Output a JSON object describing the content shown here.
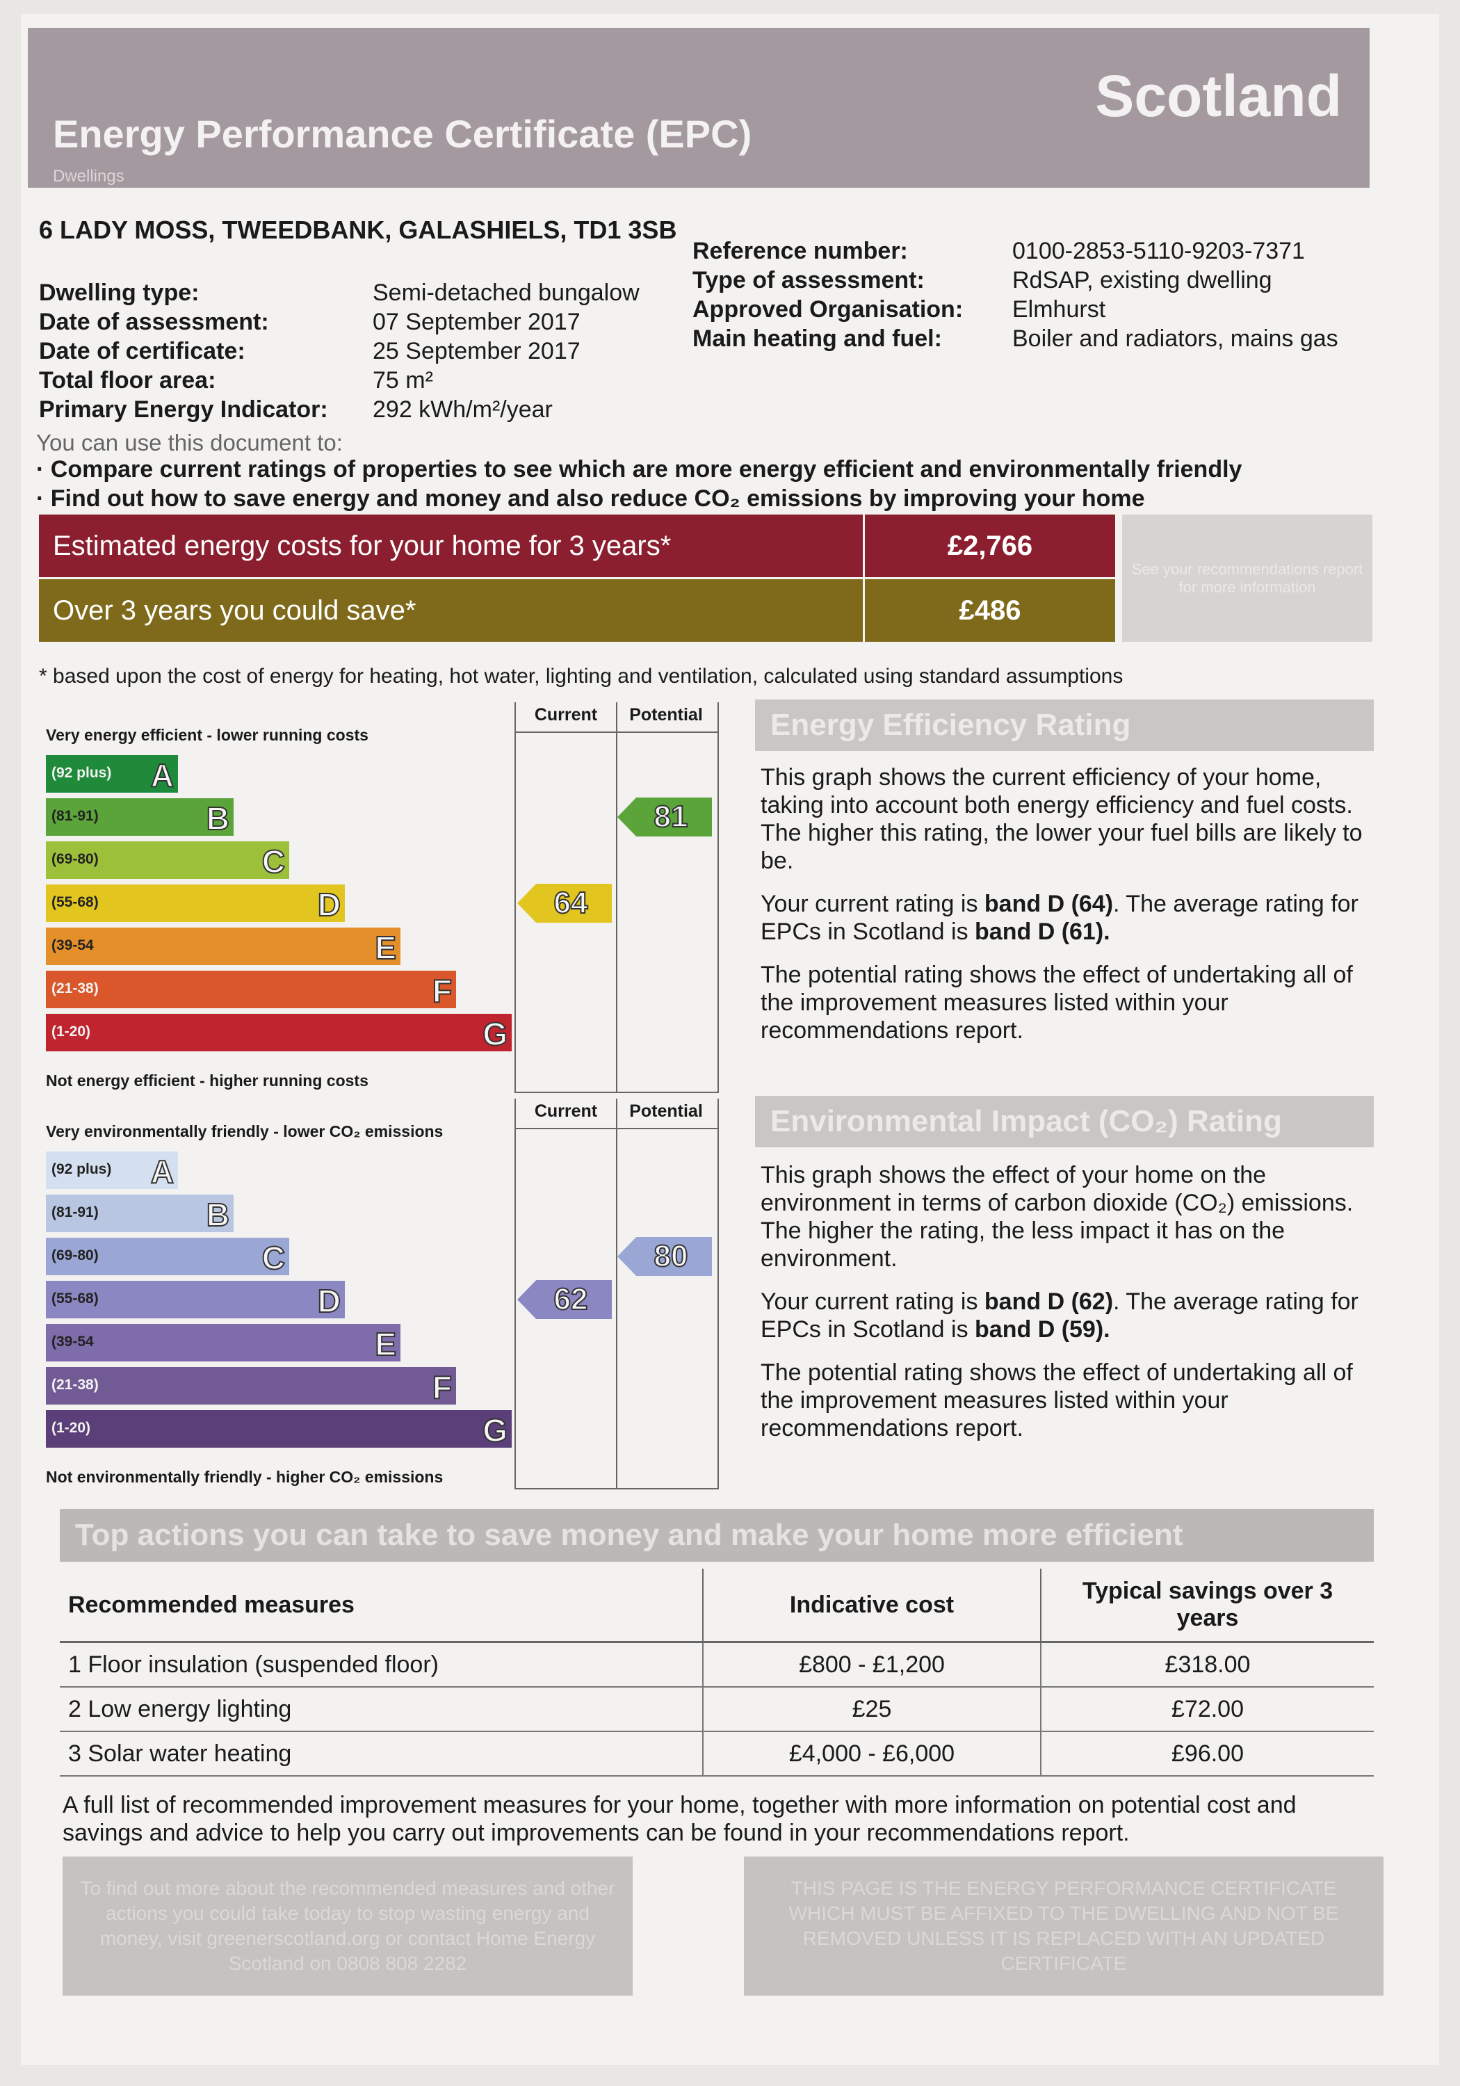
{
  "header": {
    "title": "Energy Performance Certificate (EPC)",
    "country": "Scotland",
    "sub": "Dwellings"
  },
  "address": "6 LADY MOSS, TWEEDBANK, GALASHIELS, TD1 3SB",
  "details_left": [
    {
      "label": "Dwelling type:",
      "value": "Semi-detached bungalow"
    },
    {
      "label": "Date of assessment:",
      "value": "07 September 2017"
    },
    {
      "label": "Date of certificate:",
      "value": "25 September 2017"
    },
    {
      "label": "Total floor area:",
      "value": "75 m²"
    },
    {
      "label": "Primary Energy Indicator:",
      "value": "292 kWh/m²/year"
    }
  ],
  "details_right": [
    {
      "label": "Reference number:",
      "value": "0100-2853-5110-9203-7371"
    },
    {
      "label": "Type of assessment:",
      "value": "RdSAP, existing dwelling"
    },
    {
      "label": "Approved Organisation:",
      "value": "Elmhurst"
    },
    {
      "label": "Main heating and fuel:",
      "value": "Boiler and radiators, mains gas"
    }
  ],
  "uses": {
    "intro": "You can use this document to:",
    "items": [
      "Compare current ratings of properties to see which are more energy efficient and environmentally friendly",
      "Find out how to save energy and money and also reduce CO₂ emissions by improving your home"
    ]
  },
  "costs": {
    "estimated_label": "Estimated energy costs for your home for 3 years*",
    "estimated_value": "£2,766",
    "save_label": "Over 3 years you could save*",
    "save_value": "£486",
    "side_note": "See your recommendations report for more information",
    "footnote": "* based upon the cost of energy for heating, hot water, lighting and ventilation, calculated using standard assumptions"
  },
  "columns": {
    "current": "Current",
    "potential": "Potential"
  },
  "efficiency": {
    "top_label": "Very energy efficient - lower running costs",
    "bottom_label": "Not energy efficient - higher running costs",
    "current": 64,
    "potential": 81,
    "heading": "Energy Efficiency Rating",
    "p1": "This graph shows the current efficiency of your home, taking into account both energy efficiency and fuel costs. The higher this rating, the lower your fuel bills are likely to be.",
    "p2_pre": "Your current rating is ",
    "p2_band": "band D (64)",
    "p2_mid": ". The average rating for EPCs in Scotland is ",
    "p2_avg": "band D (61).",
    "p3": "The potential rating shows the effect of undertaking all of the improvement measures listed within your recommendations report."
  },
  "environmental": {
    "top_label": "Very environmentally friendly - lower CO₂ emissions",
    "bottom_label": "Not environmentally friendly - higher CO₂ emissions",
    "current": 62,
    "potential": 80,
    "heading": "Environmental Impact (CO₂) Rating",
    "p1": "This graph shows the effect of your home on the environment in terms of carbon dioxide (CO₂) emissions. The higher the rating, the less impact it has on the environment.",
    "p2_pre": "Your current rating is ",
    "p2_band": "band D (62)",
    "p2_mid": ". The average rating for EPCs in Scotland is ",
    "p2_avg": "band D (59).",
    "p3": "The potential rating shows the effect of undertaking all of the improvement measures listed within your recommendations report."
  },
  "bands": [
    {
      "range": "(92 plus)",
      "letter": "A"
    },
    {
      "range": "(81-91)",
      "letter": "B"
    },
    {
      "range": "(69-80)",
      "letter": "C"
    },
    {
      "range": "(55-68)",
      "letter": "D"
    },
    {
      "range": "(39-54",
      "letter": "E"
    },
    {
      "range": "(21-38)",
      "letter": "F"
    },
    {
      "range": "(1-20)",
      "letter": "G"
    }
  ],
  "actions": {
    "heading": "Top actions you can take to save money and make your home more efficient",
    "headers": [
      "Recommended measures",
      "Indicative cost",
      "Typical savings over 3 years"
    ],
    "rows": [
      [
        "1 Floor insulation (suspended floor)",
        "£800 - £1,200",
        "£318.00"
      ],
      [
        "2 Low energy lighting",
        "£25",
        "£72.00"
      ],
      [
        "3 Solar water heating",
        "£4,000 - £6,000",
        "£96.00"
      ]
    ],
    "note": "A full list of recommended improvement measures for your home, together with more information on potential cost and savings and advice to help you carry out improvements can be found in your recommendations report."
  },
  "footer": {
    "left": "To find out more about the recommended measures and other actions you could take today to stop wasting energy and money, visit greenerscotland.org or contact Home Energy Scotland on 0808 808 2282",
    "right": "THIS PAGE IS THE ENERGY PERFORMANCE CERTIFICATE WHICH MUST BE AFFIXED TO THE DWELLING AND NOT BE REMOVED UNLESS IT IS REPLACED WITH AN UPDATED CERTIFICATE"
  },
  "colors": {
    "efficiency_bands": [
      "#1f8a3a",
      "#5aa43a",
      "#9dc03a",
      "#e3c51f",
      "#e58f2a",
      "#d9572a",
      "#c0242e"
    ],
    "environment_bands": [
      "#d4e0f0",
      "#b8c6e2",
      "#9aa6d4",
      "#8a87c2",
      "#7f6cab",
      "#725a94",
      "#5a3f78"
    ]
  }
}
